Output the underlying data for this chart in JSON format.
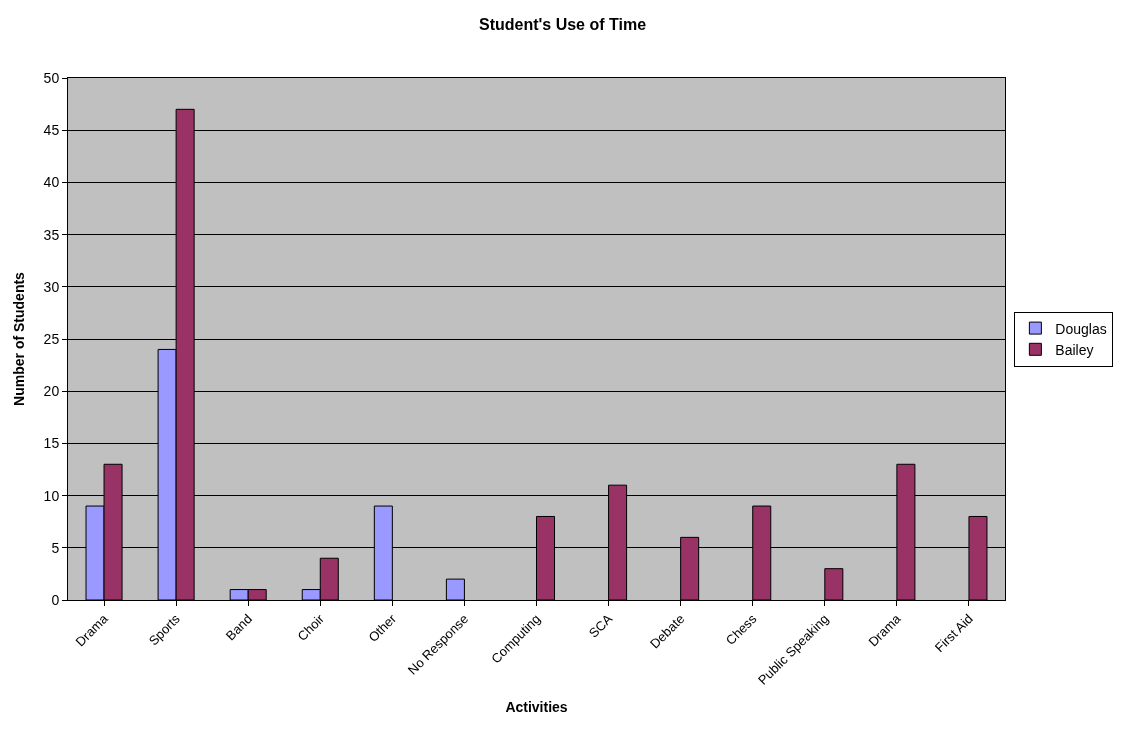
{
  "chart_data": {
    "type": "bar",
    "title": "Student's Use of Time",
    "xlabel": "Activities",
    "ylabel": "Number of Students",
    "categories": [
      "Drama",
      "Sports",
      "Band",
      "Choir",
      "Other",
      "No Response",
      "Computing",
      "SCA",
      "Debate",
      "Chess",
      "Public Speaking",
      "Drama",
      "First Aid"
    ],
    "series": [
      {
        "name": "Douglas",
        "color": "#9999ff",
        "values": [
          9,
          24,
          1,
          1,
          9,
          2,
          null,
          null,
          null,
          null,
          null,
          null,
          null
        ]
      },
      {
        "name": "Bailey",
        "color": "#993366",
        "values": [
          13,
          47,
          1,
          4,
          null,
          null,
          8,
          11,
          6,
          9,
          3,
          13,
          8
        ]
      }
    ],
    "ylim": [
      0,
      50
    ],
    "yticks": [
      0,
      5,
      10,
      15,
      20,
      25,
      30,
      35,
      40,
      45,
      50
    ],
    "grid": "y",
    "legend": "right"
  }
}
